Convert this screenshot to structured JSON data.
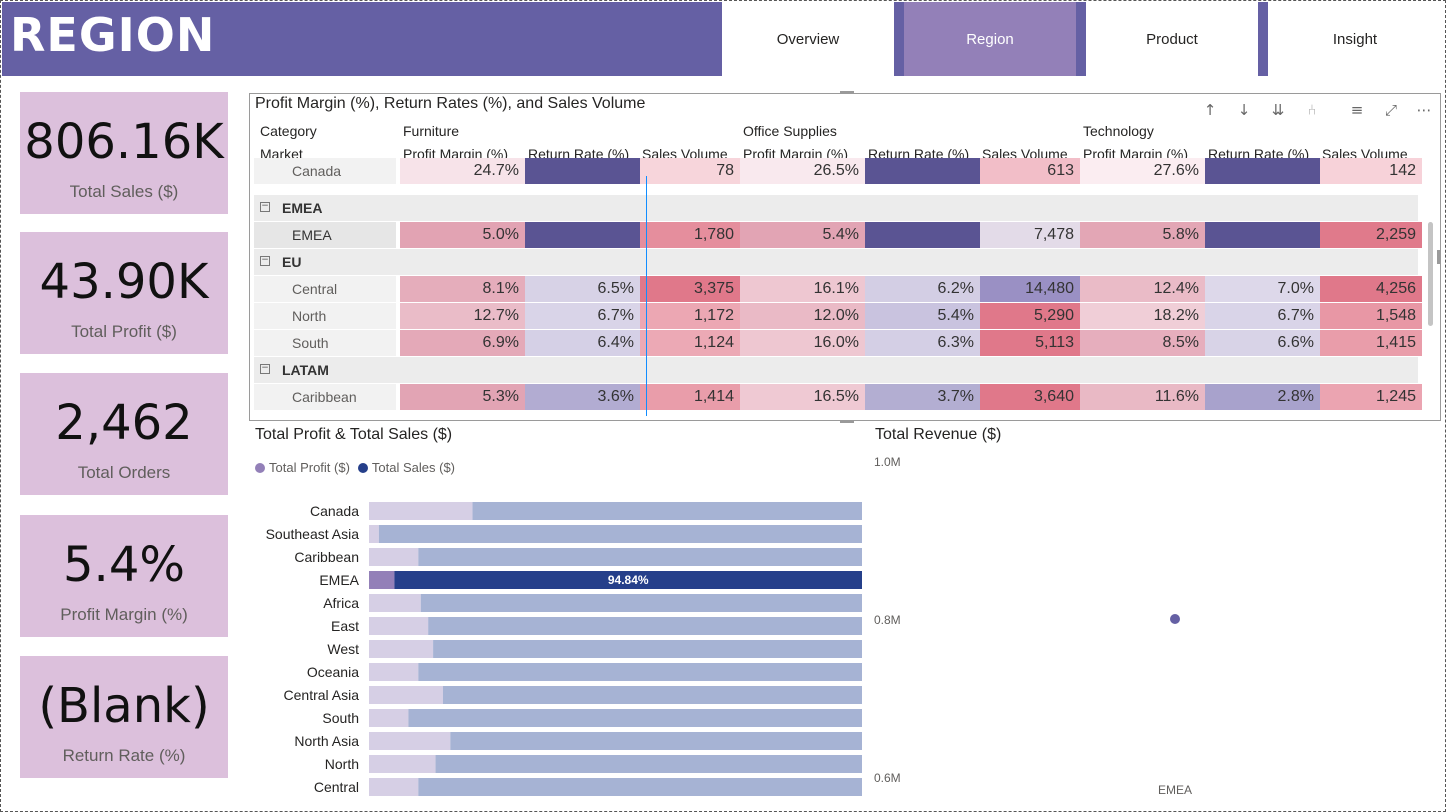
{
  "header": {
    "title": "REGION",
    "tabs": [
      {
        "label": "Overview",
        "active": false
      },
      {
        "label": "Region",
        "active": true
      },
      {
        "label": "Product",
        "active": false
      },
      {
        "label": "Insight",
        "active": false
      }
    ]
  },
  "kpis": [
    {
      "value": "806.16K",
      "label": "Total Sales ($)"
    },
    {
      "value": "43.90K",
      "label": "Total Profit ($)"
    },
    {
      "value": "2,462",
      "label": "Total Orders"
    },
    {
      "value": "5.4%",
      "label": "Profit Margin (%)"
    },
    {
      "value": "(Blank)",
      "label": "Return Rate (%)"
    }
  ],
  "matrix": {
    "title": "Profit Margin (%), Return Rates (%), and Sales Volume",
    "row_header_1": "Category",
    "row_header_2": "Market",
    "categories": [
      "Furniture",
      "Office Supplies",
      "Technology"
    ],
    "measures": [
      "Profit Margin (%)",
      "Return Rate (%)",
      "Sales Volume"
    ],
    "rows": [
      {
        "type": "leaf",
        "label": "Canada",
        "values": [
          "24.7%",
          "",
          "78",
          "26.5%",
          "",
          "613",
          "27.6%",
          "",
          "142"
        ]
      },
      {
        "type": "group",
        "label": "EMEA"
      },
      {
        "type": "leaf",
        "label": "EMEA",
        "selected": true,
        "values": [
          "5.0%",
          "",
          "1,780",
          "5.4%",
          "",
          "7,478",
          "5.8%",
          "",
          "2,259"
        ]
      },
      {
        "type": "group",
        "label": "EU"
      },
      {
        "type": "leaf",
        "label": "Central",
        "values": [
          "8.1%",
          "6.5%",
          "3,375",
          "16.1%",
          "6.2%",
          "14,480",
          "12.4%",
          "7.0%",
          "4,256"
        ]
      },
      {
        "type": "leaf",
        "label": "North",
        "values": [
          "12.7%",
          "6.7%",
          "1,172",
          "12.0%",
          "5.4%",
          "5,290",
          "18.2%",
          "6.7%",
          "1,548"
        ]
      },
      {
        "type": "leaf",
        "label": "South",
        "values": [
          "6.9%",
          "6.4%",
          "1,124",
          "16.0%",
          "6.3%",
          "5,113",
          "8.5%",
          "6.6%",
          "1,415"
        ]
      },
      {
        "type": "group",
        "label": "LATAM"
      },
      {
        "type": "leaf",
        "label": "Caribbean",
        "values": [
          "5.3%",
          "3.6%",
          "1,414",
          "16.5%",
          "3.7%",
          "3,640",
          "11.6%",
          "2.8%",
          "1,245"
        ]
      }
    ],
    "colors": {
      "pm_low": "#e8a8b8",
      "pm_high": "#fbeef2",
      "rr": "#c9c4dc",
      "sv_high": "#e0788a",
      "dark_purple": "#5a5493"
    }
  },
  "bar_chart": {
    "title": "Total Profit & Total Sales ($)",
    "legend": [
      "Total Profit ($)",
      "Total Sales ($)"
    ],
    "colors": {
      "profit": "#d6cfe5",
      "sales": "#a6b3d4",
      "profit_sel": "#9380b8",
      "sales_sel": "#253f8a"
    },
    "selected_label": "94.84%"
  },
  "chart_data": [
    {
      "type": "bar",
      "title": "Total Profit & Total Sales ($)",
      "orientation": "horizontal-100%-stacked",
      "categories": [
        "Canada",
        "Southeast Asia",
        "Caribbean",
        "EMEA",
        "Africa",
        "East",
        "West",
        "Oceania",
        "Central Asia",
        "South",
        "North Asia",
        "North",
        "Central"
      ],
      "series": [
        {
          "name": "Total Profit ($)",
          "values": [
            21,
            2,
            10,
            5.16,
            10.5,
            12,
            13,
            10,
            15,
            8,
            16.5,
            13.5,
            10
          ]
        },
        {
          "name": "Total Sales ($)",
          "values": [
            79,
            98,
            90,
            94.84,
            89.5,
            88,
            87,
            90,
            85,
            92,
            83.5,
            86.5,
            90
          ]
        }
      ],
      "highlighted": "EMEA",
      "data_labels": {
        "EMEA": "94.84%"
      }
    },
    {
      "type": "scatter",
      "title": "Total Revenue ($)",
      "x": [
        "EMEA"
      ],
      "y": [
        0.8
      ],
      "y_ticks": [
        "1.0M",
        "0.8M",
        "0.6M"
      ],
      "ylim": [
        0.6,
        1.0
      ]
    }
  ],
  "scatter": {
    "title": "Total Revenue ($)",
    "y_ticks": [
      "1.0M",
      "0.8M",
      "0.6M"
    ],
    "x_label": "EMEA",
    "point_color": "#6560a4"
  }
}
